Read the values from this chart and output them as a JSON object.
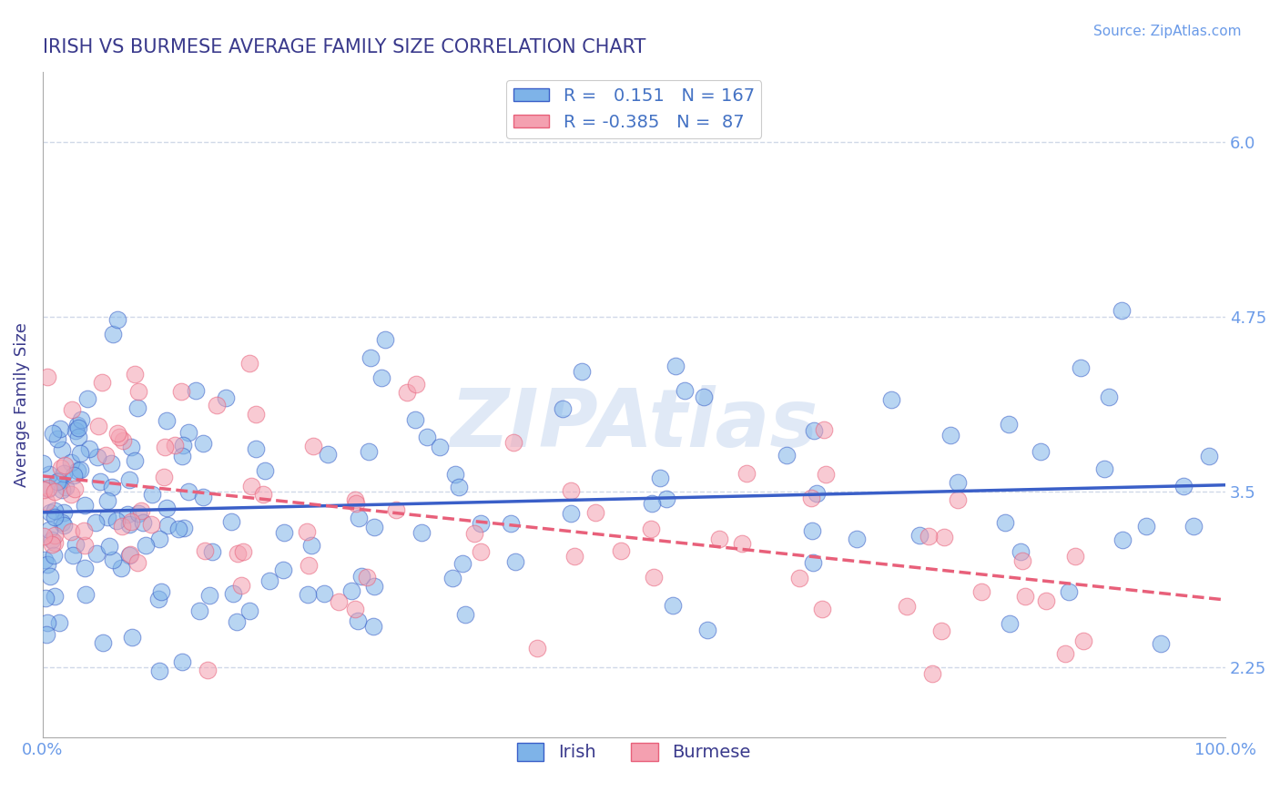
{
  "title": "IRISH VS BURMESE AVERAGE FAMILY SIZE CORRELATION CHART",
  "source_text": "Source: ZipAtlas.com",
  "ylabel": "Average Family Size",
  "x_tick_labels": [
    "0.0%",
    "100.0%"
  ],
  "y_ticks": [
    2.25,
    3.5,
    4.75,
    6.0
  ],
  "xlim": [
    0.0,
    100.0
  ],
  "ylim": [
    1.75,
    6.5
  ],
  "irish_R": 0.151,
  "irish_N": 167,
  "burmese_R": -0.385,
  "burmese_N": 87,
  "irish_color": "#7EB3E8",
  "burmese_color": "#F4A0B0",
  "irish_line_color": "#3A5FC8",
  "burmese_line_color": "#E8607A",
  "watermark": "ZIPAtlas",
  "watermark_color": "#C8D8F0",
  "title_color": "#3A3A8C",
  "axis_label_color": "#3A3A8C",
  "tick_color": "#6B9BE8",
  "legend_R_color": "#4472C4",
  "grid_color": "#D0D8E8",
  "background_color": "#FFFFFF",
  "irish_seed": 42,
  "burmese_seed": 99
}
